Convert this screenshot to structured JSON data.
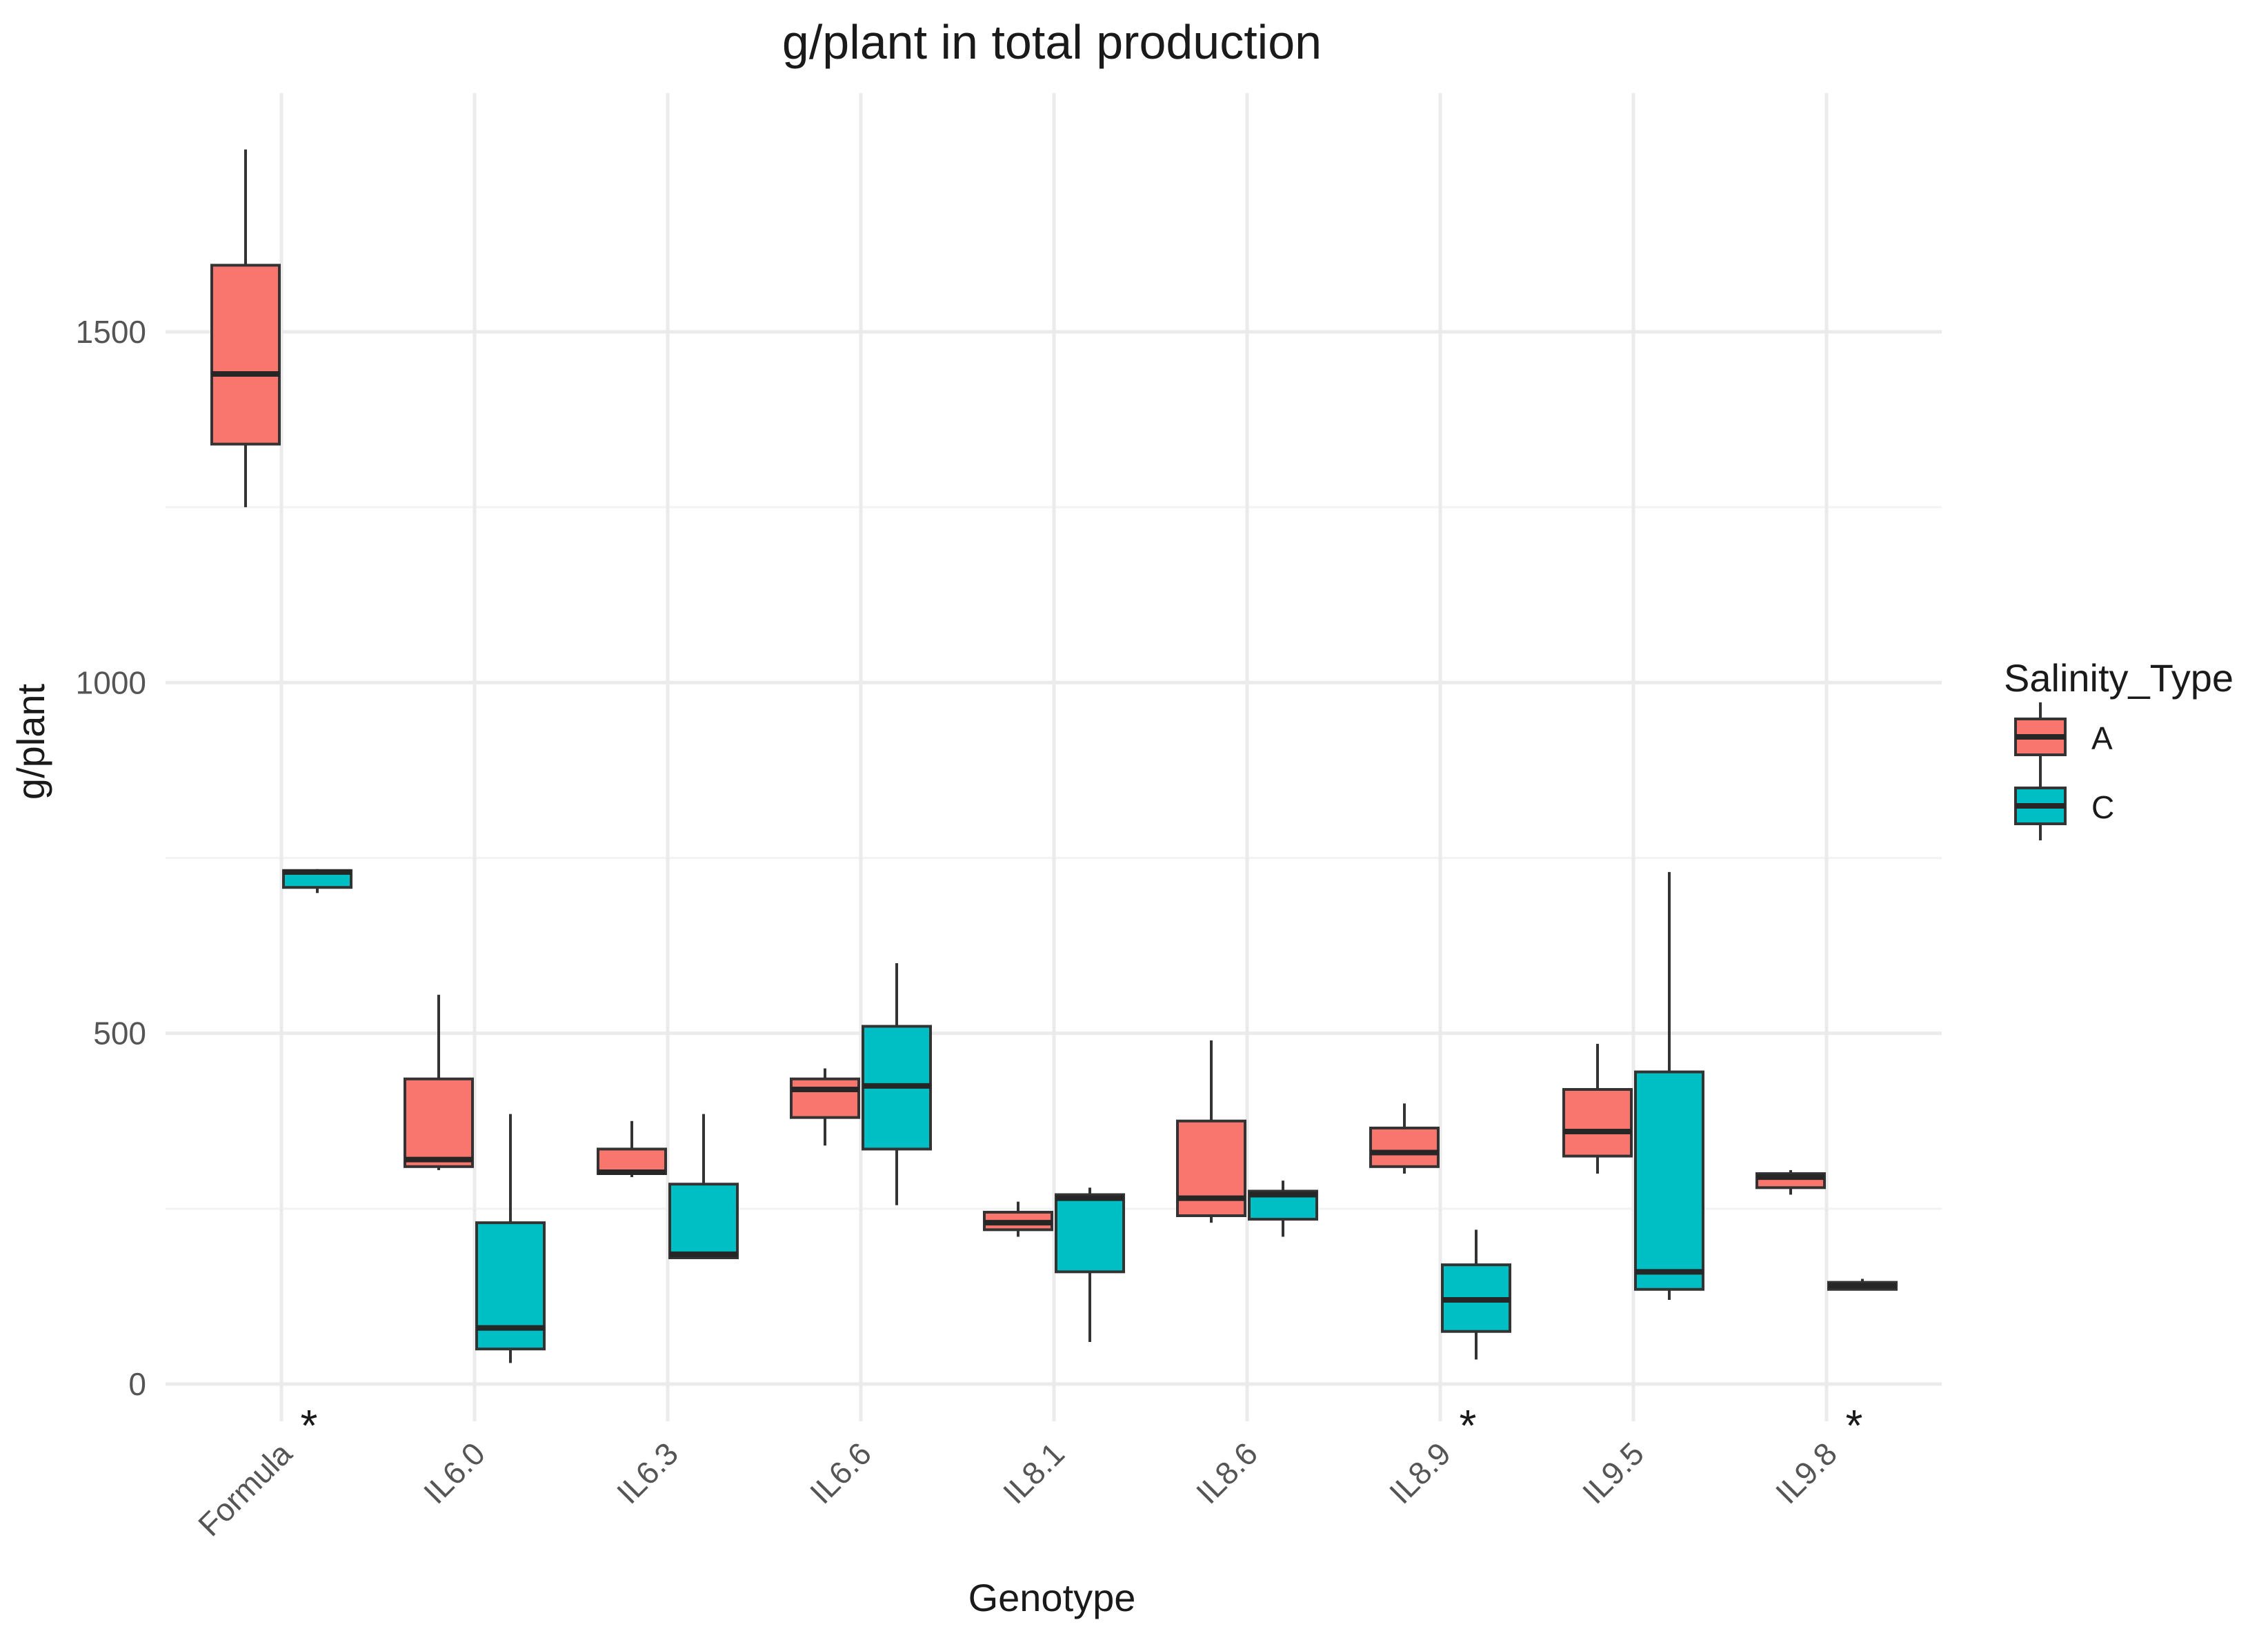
{
  "chart_data": {
    "type": "boxplot",
    "title": "g/plant in total production",
    "xlabel": "Genotype",
    "ylabel": "g/plant",
    "ylim": [
      -50,
      1790
    ],
    "yticks": [
      0,
      500,
      1000,
      1500
    ],
    "grid": true,
    "categories": [
      "Formula",
      "IL6.0",
      "IL6.3",
      "IL6.6",
      "IL8.1",
      "IL8.6",
      "IL8.9",
      "IL9.5",
      "IL9.8"
    ],
    "significance": [
      "*",
      "",
      "",
      "",
      "",
      "",
      "*",
      "",
      "*"
    ],
    "legend": {
      "title": "Salinity_Type",
      "position": "right"
    },
    "series": [
      {
        "name": "A",
        "color": "#f8766d",
        "boxes": [
          {
            "min": 1250,
            "q1": 1340,
            "median": 1440,
            "q3": 1595,
            "max": 1760
          },
          {
            "min": 305,
            "q1": 310,
            "median": 320,
            "q3": 435,
            "max": 555
          },
          {
            "min": 295,
            "q1": 300,
            "median": 302,
            "q3": 335,
            "max": 375
          },
          {
            "min": 340,
            "q1": 380,
            "median": 420,
            "q3": 435,
            "max": 450
          },
          {
            "min": 210,
            "q1": 220,
            "median": 230,
            "q3": 245,
            "max": 260
          },
          {
            "min": 230,
            "q1": 240,
            "median": 265,
            "q3": 375,
            "max": 490
          },
          {
            "min": 300,
            "q1": 310,
            "median": 330,
            "q3": 365,
            "max": 400
          },
          {
            "min": 300,
            "q1": 325,
            "median": 360,
            "q3": 420,
            "max": 485
          },
          {
            "min": 270,
            "q1": 280,
            "median": 295,
            "q3": 300,
            "max": 305
          }
        ]
      },
      {
        "name": "C",
        "color": "#00bfc4",
        "boxes": [
          {
            "min": 700,
            "q1": 708,
            "median": 730,
            "q3": 732,
            "max": 734
          },
          {
            "min": 30,
            "q1": 50,
            "median": 80,
            "q3": 230,
            "max": 385
          },
          {
            "min": 180,
            "q1": 180,
            "median": 185,
            "q3": 285,
            "max": 385
          },
          {
            "min": 255,
            "q1": 335,
            "median": 425,
            "q3": 510,
            "max": 600
          },
          {
            "min": 60,
            "q1": 160,
            "median": 265,
            "q3": 270,
            "max": 280
          },
          {
            "min": 210,
            "q1": 235,
            "median": 270,
            "q3": 275,
            "max": 290
          },
          {
            "min": 35,
            "q1": 75,
            "median": 120,
            "q3": 170,
            "max": 220
          },
          {
            "min": 120,
            "q1": 135,
            "median": 160,
            "q3": 445,
            "max": 730
          },
          {
            "min": 135,
            "q1": 135,
            "median": 140,
            "q3": 145,
            "max": 150
          }
        ]
      }
    ]
  }
}
